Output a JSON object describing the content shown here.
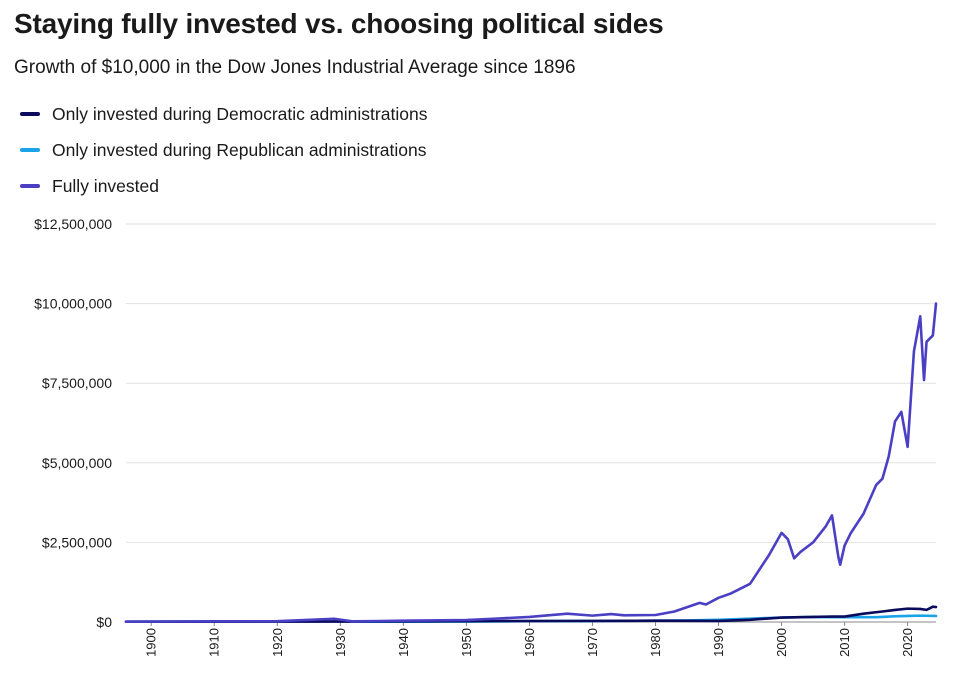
{
  "chart_data": {
    "type": "line",
    "title": "Staying fully invested vs. choosing political sides",
    "subtitle": "Growth of $10,000 in the Dow Jones Industrial Average since 1896",
    "xlabel": "",
    "ylabel": "",
    "xlim": [
      1896,
      2024.5
    ],
    "ylim": [
      0,
      12500000
    ],
    "x_ticks": [
      "1900",
      "1910",
      "1920",
      "1930",
      "1940",
      "1950",
      "1960",
      "1970",
      "1980",
      "1990",
      "2000",
      "2010",
      "2020"
    ],
    "y_ticks": [
      "$0",
      "$2,500,000",
      "$5,000,000",
      "$7,500,000",
      "$10,000,000",
      "$12,500,000"
    ],
    "grid": true,
    "legend_position": "top-left",
    "series": [
      {
        "name": "Only invested during Democratic administrations",
        "color": "#0b0b5e",
        "points": [
          [
            1896,
            10000
          ],
          [
            1920,
            12000
          ],
          [
            1930,
            14000
          ],
          [
            1950,
            25000
          ],
          [
            1970,
            35000
          ],
          [
            1980,
            40000
          ],
          [
            1990,
            35000
          ],
          [
            1995,
            70000
          ],
          [
            2000,
            140000
          ],
          [
            2005,
            160000
          ],
          [
            2008,
            170000
          ],
          [
            2010,
            170000
          ],
          [
            2013,
            260000
          ],
          [
            2016,
            330000
          ],
          [
            2018,
            380000
          ],
          [
            2020,
            420000
          ],
          [
            2022,
            410000
          ],
          [
            2023,
            380000
          ],
          [
            2023.5,
            430000
          ],
          [
            2024,
            480000
          ],
          [
            2024.5,
            470000
          ]
        ]
      },
      {
        "name": "Only invested during Republican administrations",
        "color": "#1aa3e8",
        "points": [
          [
            1896,
            10000
          ],
          [
            1920,
            15000
          ],
          [
            1929,
            20000
          ],
          [
            1933,
            10000
          ],
          [
            1950,
            15000
          ],
          [
            1960,
            25000
          ],
          [
            1970,
            30000
          ],
          [
            1985,
            50000
          ],
          [
            1990,
            70000
          ],
          [
            2000,
            140000
          ],
          [
            2005,
            160000
          ],
          [
            2008,
            150000
          ],
          [
            2010,
            150000
          ],
          [
            2015,
            150000
          ],
          [
            2018,
            180000
          ],
          [
            2020,
            190000
          ],
          [
            2022,
            200000
          ],
          [
            2024.5,
            190000
          ]
        ]
      },
      {
        "name": "Fully invested",
        "color": "#4b3fc4",
        "points": [
          [
            1896,
            10000
          ],
          [
            1910,
            20000
          ],
          [
            1920,
            25000
          ],
          [
            1929,
            100000
          ],
          [
            1932,
            20000
          ],
          [
            1940,
            40000
          ],
          [
            1950,
            60000
          ],
          [
            1955,
            110000
          ],
          [
            1960,
            160000
          ],
          [
            1966,
            260000
          ],
          [
            1970,
            200000
          ],
          [
            1973,
            250000
          ],
          [
            1975,
            210000
          ],
          [
            1980,
            220000
          ],
          [
            1983,
            330000
          ],
          [
            1987,
            600000
          ],
          [
            1988,
            550000
          ],
          [
            1990,
            760000
          ],
          [
            1992,
            900000
          ],
          [
            1995,
            1200000
          ],
          [
            1998,
            2100000
          ],
          [
            2000,
            2800000
          ],
          [
            2001,
            2600000
          ],
          [
            2002,
            2000000
          ],
          [
            2003,
            2200000
          ],
          [
            2005,
            2500000
          ],
          [
            2007,
            3000000
          ],
          [
            2008,
            3350000
          ],
          [
            2009,
            2050000
          ],
          [
            2009.3,
            1800000
          ],
          [
            2010,
            2400000
          ],
          [
            2011,
            2800000
          ],
          [
            2013,
            3400000
          ],
          [
            2015,
            4300000
          ],
          [
            2016,
            4500000
          ],
          [
            2017,
            5200000
          ],
          [
            2018,
            6300000
          ],
          [
            2019,
            6600000
          ],
          [
            2020,
            5500000
          ],
          [
            2020.5,
            7000000
          ],
          [
            2021,
            8500000
          ],
          [
            2022,
            9600000
          ],
          [
            2022.6,
            7600000
          ],
          [
            2023,
            8800000
          ],
          [
            2024,
            9000000
          ],
          [
            2024.5,
            10000000
          ]
        ]
      }
    ]
  }
}
